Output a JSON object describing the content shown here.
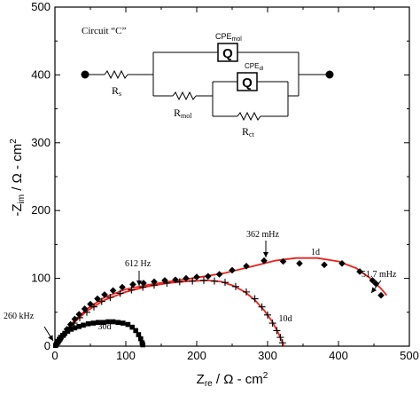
{
  "chart_data": {
    "type": "scatter",
    "xlabel": {
      "main": "Z",
      "sub": "re",
      "rest": " / Ω - cm",
      "sup": "2"
    },
    "ylabel": {
      "main": "-Z",
      "sub": "im",
      "rest": " / Ω - cm",
      "sup": "2"
    },
    "xlim": [
      0,
      500
    ],
    "ylim": [
      0,
      500
    ],
    "xticks": [
      0,
      100,
      200,
      300,
      400,
      500
    ],
    "yticks": [
      0,
      100,
      200,
      300,
      400,
      500
    ],
    "fit_color": "#e8231c",
    "series": [
      {
        "name": "1d",
        "marker": "diamond",
        "points": [
          [
            2,
            2
          ],
          [
            5,
            6
          ],
          [
            8,
            11
          ],
          [
            12,
            17
          ],
          [
            17,
            25
          ],
          [
            22,
            32
          ],
          [
            28,
            40
          ],
          [
            34,
            47
          ],
          [
            42,
            55
          ],
          [
            50,
            62
          ],
          [
            60,
            70
          ],
          [
            70,
            76
          ],
          [
            82,
            82
          ],
          [
            95,
            87
          ],
          [
            110,
            91
          ],
          [
            125,
            93
          ],
          [
            140,
            95
          ],
          [
            155,
            97
          ],
          [
            170,
            98
          ],
          [
            185,
            100
          ],
          [
            200,
            102
          ],
          [
            216,
            103
          ],
          [
            232,
            106
          ],
          [
            250,
            112
          ],
          [
            270,
            118
          ],
          [
            295,
            126
          ],
          [
            322,
            125
          ],
          [
            345,
            122
          ],
          [
            380,
            120
          ],
          [
            405,
            122
          ],
          [
            430,
            110
          ],
          [
            448,
            97
          ],
          [
            453,
            92
          ],
          [
            460,
            75
          ]
        ],
        "fit": [
          [
            0,
            0
          ],
          [
            10,
            15
          ],
          [
            25,
            35
          ],
          [
            45,
            55
          ],
          [
            70,
            72
          ],
          [
            100,
            84
          ],
          [
            130,
            90
          ],
          [
            160,
            95
          ],
          [
            200,
            101
          ],
          [
            240,
            108
          ],
          [
            280,
            118
          ],
          [
            310,
            126
          ],
          [
            340,
            130
          ],
          [
            370,
            130
          ],
          [
            400,
            125
          ],
          [
            425,
            115
          ],
          [
            445,
            100
          ],
          [
            460,
            85
          ],
          [
            468,
            75
          ]
        ]
      },
      {
        "name": "10d",
        "marker": "plus",
        "points": [
          [
            3,
            3
          ],
          [
            6,
            8
          ],
          [
            10,
            13
          ],
          [
            15,
            19
          ],
          [
            20,
            26
          ],
          [
            27,
            34
          ],
          [
            35,
            42
          ],
          [
            45,
            50
          ],
          [
            55,
            58
          ],
          [
            66,
            66
          ],
          [
            78,
            72
          ],
          [
            92,
            78
          ],
          [
            108,
            83
          ],
          [
            124,
            87
          ],
          [
            140,
            90
          ],
          [
            158,
            93
          ],
          [
            176,
            95
          ],
          [
            194,
            96
          ],
          [
            210,
            97
          ],
          [
            225,
            96
          ],
          [
            240,
            94
          ],
          [
            255,
            88
          ],
          [
            270,
            80
          ],
          [
            282,
            70
          ],
          [
            292,
            58
          ],
          [
            300,
            46
          ],
          [
            307,
            34
          ],
          [
            313,
            23
          ],
          [
            318,
            13
          ],
          [
            321,
            5
          ]
        ],
        "fit": [
          [
            0,
            0
          ],
          [
            10,
            14
          ],
          [
            25,
            33
          ],
          [
            45,
            52
          ],
          [
            70,
            68
          ],
          [
            100,
            80
          ],
          [
            130,
            88
          ],
          [
            160,
            93
          ],
          [
            190,
            96
          ],
          [
            215,
            97
          ],
          [
            235,
            95
          ],
          [
            252,
            89
          ],
          [
            268,
            80
          ],
          [
            282,
            68
          ],
          [
            295,
            53
          ],
          [
            306,
            37
          ],
          [
            314,
            22
          ],
          [
            320,
            8
          ],
          [
            323,
            0
          ]
        ]
      },
      {
        "name": "30d",
        "marker": "square",
        "points": [
          [
            1,
            1
          ],
          [
            2,
            3
          ],
          [
            3,
            5
          ],
          [
            4,
            7
          ],
          [
            6,
            10
          ],
          [
            8,
            13
          ],
          [
            11,
            16
          ],
          [
            14,
            19
          ],
          [
            18,
            22
          ],
          [
            23,
            25
          ],
          [
            28,
            27
          ],
          [
            34,
            29
          ],
          [
            40,
            31
          ],
          [
            47,
            33
          ],
          [
            54,
            34
          ],
          [
            61,
            35
          ],
          [
            68,
            35
          ],
          [
            75,
            36
          ],
          [
            82,
            36
          ],
          [
            89,
            35
          ],
          [
            96,
            34
          ],
          [
            103,
            32
          ],
          [
            109,
            28
          ],
          [
            114,
            23
          ],
          [
            118,
            17
          ],
          [
            121,
            11
          ],
          [
            123,
            5
          ],
          [
            124,
            2
          ]
        ],
        "fit": [
          [
            0,
            0
          ],
          [
            5,
            10
          ],
          [
            15,
            20
          ],
          [
            30,
            28
          ],
          [
            50,
            33
          ],
          [
            70,
            36
          ],
          [
            88,
            36
          ],
          [
            103,
            32
          ],
          [
            114,
            24
          ],
          [
            120,
            14
          ],
          [
            124,
            4
          ],
          [
            125,
            0
          ]
        ]
      }
    ],
    "annotations": [
      {
        "text": "260 kHz",
        "x": 0,
        "y": 2
      },
      {
        "text": "612 Hz",
        "x": 93,
        "y": 87
      },
      {
        "text": "362 mHz",
        "x": 310,
        "y": 126
      },
      {
        "text": "1d",
        "x": 380,
        "y": 130
      },
      {
        "text": "51.7 mHz",
        "x": 460,
        "y": 80
      },
      {
        "text": "10d",
        "x": 325,
        "y": 40
      },
      {
        "text": "30d",
        "x": 100,
        "y": 22
      }
    ],
    "circuit": {
      "title": "Circuit “C”",
      "rs": {
        "main": "R",
        "sub": "s"
      },
      "rmol": {
        "main": "R",
        "sub": "mol"
      },
      "rct": {
        "main": "R",
        "sub": "ct"
      },
      "cpemol": {
        "main": "CPE",
        "sub": "mol"
      },
      "cpedl": {
        "main": "CPE",
        "sub": "dl"
      },
      "q": "Q"
    }
  }
}
